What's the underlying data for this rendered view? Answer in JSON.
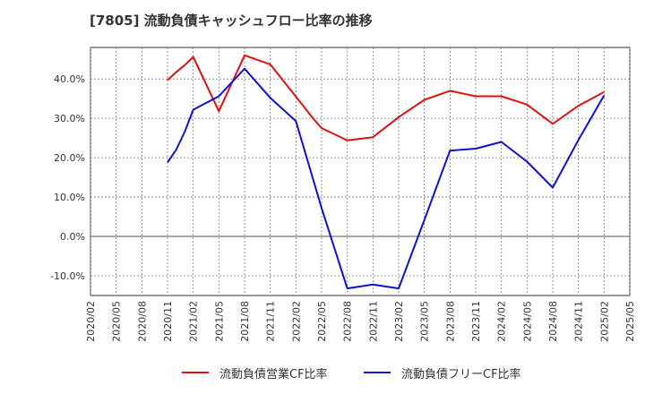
{
  "chart_data": {
    "type": "line",
    "title": "[7805]  流動負債キャッシュフロー比率の推移",
    "xlabel": "",
    "ylabel": "",
    "x_ticks": [
      "2020/02",
      "2020/05",
      "2020/08",
      "2020/11",
      "2021/02",
      "2021/05",
      "2021/08",
      "2021/11",
      "2022/02",
      "2022/05",
      "2022/08",
      "2022/11",
      "2023/02",
      "2023/05",
      "2023/08",
      "2023/11",
      "2024/02",
      "2024/05",
      "2024/08",
      "2024/11",
      "2025/02",
      "2025/05"
    ],
    "y_ticks": [
      "40.0%",
      "30.0%",
      "20.0%",
      "10.0%",
      "0.0%",
      "-10.0%"
    ],
    "y_tick_values": [
      40,
      30,
      20,
      10,
      0,
      -10
    ],
    "ylim": [
      -15,
      48
    ],
    "grid": true,
    "legend_position": "bottom",
    "series": [
      {
        "name": "流動負債営業CF比率",
        "color": "#dd1111",
        "points": [
          [
            "2020/11",
            39.7
          ],
          [
            "2020/12",
            41.7
          ],
          [
            "2021/01",
            43.5
          ],
          [
            "2021/02",
            45.6
          ],
          [
            "2021/05",
            31.8
          ],
          [
            "2021/08",
            46.0
          ],
          [
            "2021/11",
            43.7
          ],
          [
            "2022/02",
            35.5
          ],
          [
            "2022/04",
            30.0
          ],
          [
            "2022/05",
            27.5
          ],
          [
            "2022/08",
            24.4
          ],
          [
            "2022/11",
            25.2
          ],
          [
            "2023/02",
            30.3
          ],
          [
            "2023/05",
            34.7
          ],
          [
            "2023/08",
            37.0
          ],
          [
            "2023/11",
            35.6
          ],
          [
            "2024/02",
            35.6
          ],
          [
            "2024/05",
            33.5
          ],
          [
            "2024/08",
            28.6
          ],
          [
            "2024/11",
            33.2
          ],
          [
            "2025/02",
            36.7
          ]
        ]
      },
      {
        "name": "流動負債フリーCF比率",
        "color": "#1111cc",
        "points": [
          [
            "2020/11",
            18.8
          ],
          [
            "2020/12",
            22.0
          ],
          [
            "2021/01",
            26.5
          ],
          [
            "2021/02",
            32.2
          ],
          [
            "2021/05",
            35.6
          ],
          [
            "2021/08",
            42.6
          ],
          [
            "2021/11",
            35.2
          ],
          [
            "2022/02",
            29.3
          ],
          [
            "2022/05",
            7.2
          ],
          [
            "2022/08",
            -13.2
          ],
          [
            "2022/11",
            -12.2
          ],
          [
            "2023/02",
            -13.2
          ],
          [
            "2023/05",
            4.2
          ],
          [
            "2023/08",
            21.8
          ],
          [
            "2023/11",
            22.3
          ],
          [
            "2024/02",
            24.0
          ],
          [
            "2024/05",
            19.0
          ],
          [
            "2024/08",
            12.4
          ],
          [
            "2024/11",
            24.5
          ],
          [
            "2025/02",
            35.8
          ]
        ]
      }
    ]
  }
}
